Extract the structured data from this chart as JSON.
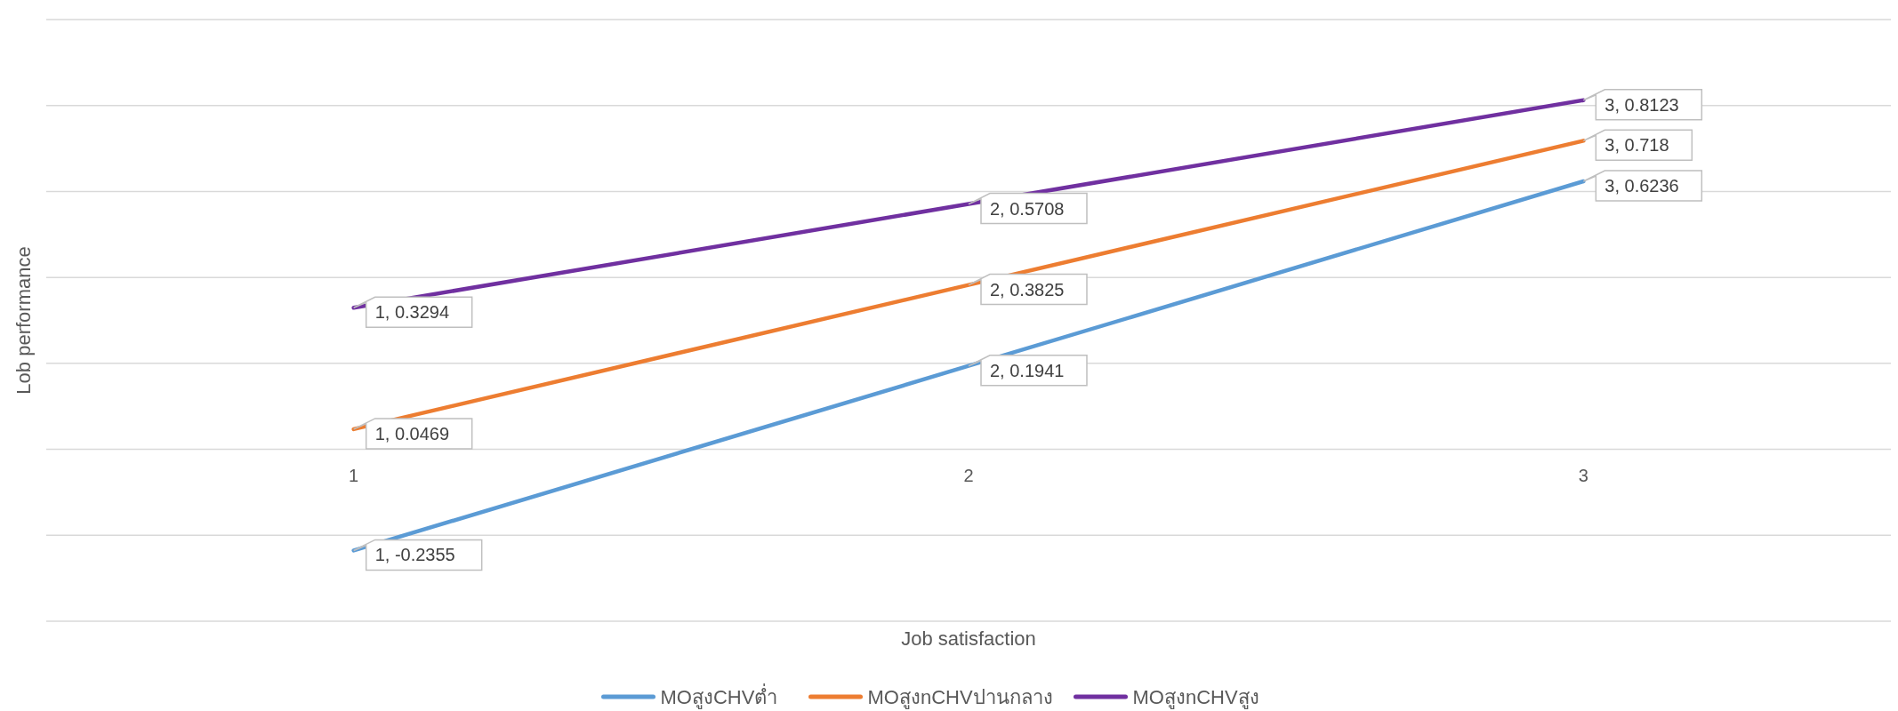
{
  "chart_data": {
    "type": "line",
    "xlabel": "Job satisfaction",
    "ylabel": "Lob performance",
    "categories": [
      "1",
      "2",
      "3"
    ],
    "series": [
      {
        "name": "MOสูงCHVต่ำ",
        "color": "#5b9bd5",
        "values": [
          -0.2355,
          0.1941,
          0.6236
        ],
        "value_labels": [
          "1, -0.2355",
          "2, 0.1941",
          "3, 0.6236"
        ]
      },
      {
        "name": "MOสูงnCHVปานกลาง",
        "color": "#ed7d31",
        "values": [
          0.0469,
          0.3825,
          0.718
        ],
        "value_labels": [
          "1, 0.0469",
          "2, 0.3825",
          "3, 0.718"
        ]
      },
      {
        "name": "MOสูงnCHVสูง",
        "color": "#7030a0",
        "values": [
          0.3294,
          0.5708,
          0.8123
        ],
        "value_labels": [
          "1, 0.3294",
          "2, 0.5708",
          "3, 0.8123"
        ]
      }
    ],
    "ylim": [
      -0.4,
      1.0
    ],
    "yticks": [
      {
        "value": -0.4,
        "label": null
      },
      {
        "value": -0.2,
        "label": null
      },
      {
        "value": 0,
        "label": null
      },
      {
        "value": 0.2,
        "label": null
      },
      {
        "value": 0.4,
        "label": null
      },
      {
        "value": 0.6,
        "label": null
      },
      {
        "value": 0.8,
        "label": null
      },
      {
        "value": 1.0,
        "label": null
      }
    ],
    "tick_labels": "x",
    "grid": "y",
    "legend": "bottom",
    "marker": "none",
    "line_style": "solid"
  }
}
